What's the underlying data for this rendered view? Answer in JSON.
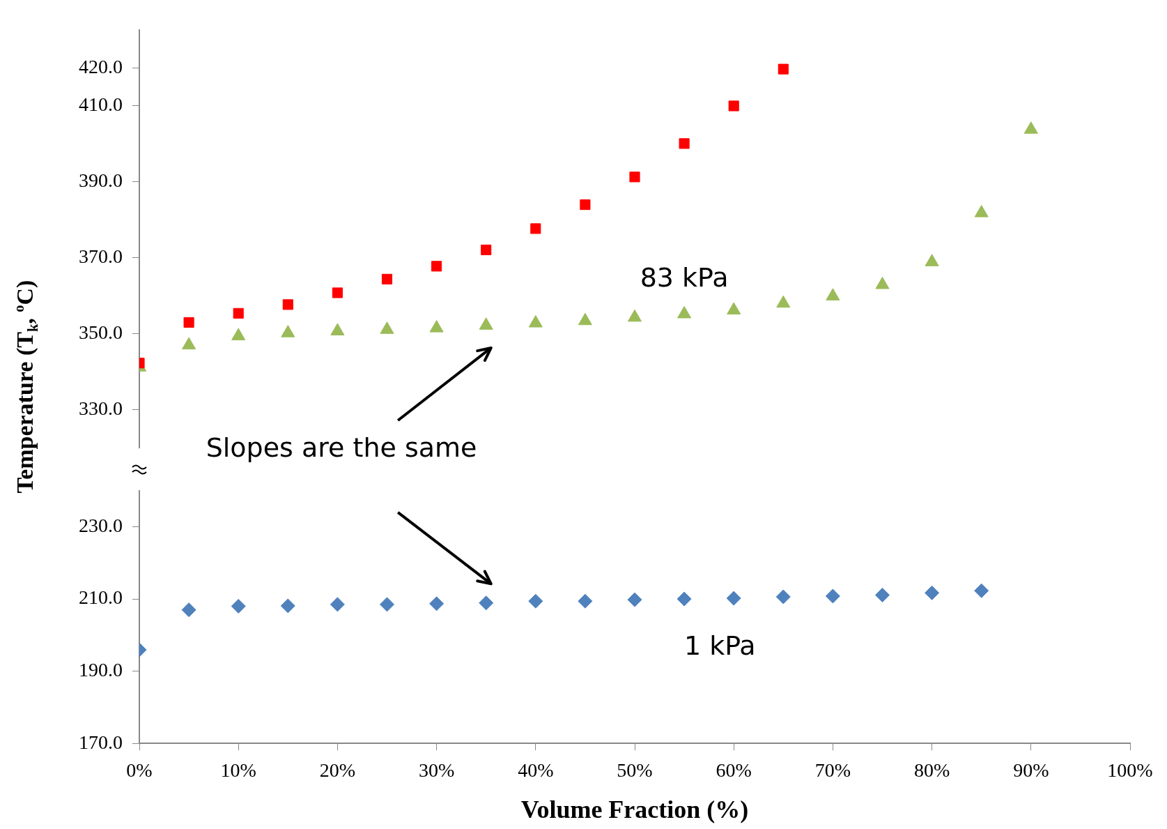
{
  "chart_data": [
    {
      "type": "scatter",
      "ylabel": "Temperature (T$_{k}$, $^{o}$C)",
      "tick_labels": "y",
      "xlim": [
        0,
        100
      ],
      "ylim": [
        320,
        430
      ],
      "yticks": [
        {
          "value": 330,
          "label": "330.0"
        },
        {
          "value": 350,
          "label": "350.0"
        },
        {
          "value": 370,
          "label": "370.0"
        },
        {
          "value": 390,
          "label": "390.0"
        },
        {
          "value": 410,
          "label": "410.0"
        },
        {
          "value": 420,
          "label": "420.0"
        }
      ],
      "grid": false,
      "legend": false,
      "series": [
        {
          "color": "#ff0000",
          "marker": "square",
          "x": [
            0,
            5,
            10,
            15,
            20,
            25,
            30,
            35,
            40,
            45,
            50,
            55,
            60,
            65
          ],
          "values": [
            342.3,
            353.0,
            355.4,
            357.7,
            360.8,
            364.4,
            367.8,
            372.1,
            377.7,
            384.0,
            391.3,
            400.1,
            410.0,
            419.7
          ]
        },
        {
          "color": "#9bbb59",
          "marker": "triangle",
          "x": [
            0,
            5,
            10,
            15,
            20,
            25,
            30,
            35,
            40,
            45,
            50,
            55,
            60,
            65,
            70,
            75,
            80,
            85,
            90
          ],
          "values": [
            341.2,
            347.0,
            349.4,
            350.2,
            350.7,
            351.1,
            351.5,
            352.2,
            352.8,
            353.4,
            354.3,
            355.2,
            356.2,
            358.0,
            359.9,
            362.9,
            368.9,
            381.8,
            403.8
          ]
        }
      ],
      "annotations": [
        "83 kPa",
        "Slopes are the same"
      ]
    },
    {
      "type": "scatter",
      "xlabel": "Volume Fraction (%)",
      "xlim": [
        0,
        100
      ],
      "xticks": [
        {
          "value": 0,
          "label": "0%"
        },
        {
          "value": 10,
          "label": "10%"
        },
        {
          "value": 20,
          "label": "20%"
        },
        {
          "value": 30,
          "label": "30%"
        },
        {
          "value": 40,
          "label": "40%"
        },
        {
          "value": 50,
          "label": "50%"
        },
        {
          "value": 60,
          "label": "60%"
        },
        {
          "value": 70,
          "label": "70%"
        },
        {
          "value": 80,
          "label": "80%"
        },
        {
          "value": 90,
          "label": "90%"
        },
        {
          "value": 100,
          "label": "100%"
        }
      ],
      "ylim": [
        170,
        240
      ],
      "yticks": [
        {
          "value": 170,
          "label": "170.0"
        },
        {
          "value": 190,
          "label": "190.0"
        },
        {
          "value": 210,
          "label": "210.0"
        },
        {
          "value": 230,
          "label": "230.0"
        }
      ],
      "grid": false,
      "legend": false,
      "series": [
        {
          "color": "#4f81bd",
          "marker": "diamond",
          "x": [
            0,
            5,
            10,
            15,
            20,
            25,
            30,
            35,
            40,
            45,
            50,
            55,
            60,
            65,
            70,
            75,
            80,
            85
          ],
          "values": [
            195.9,
            207.0,
            208.0,
            208.1,
            208.5,
            208.5,
            208.7,
            208.9,
            209.4,
            209.4,
            209.8,
            210.0,
            210.2,
            210.6,
            210.8,
            211.1,
            211.7,
            212.3
          ]
        }
      ],
      "annotations": [
        "1 kPa"
      ]
    }
  ]
}
